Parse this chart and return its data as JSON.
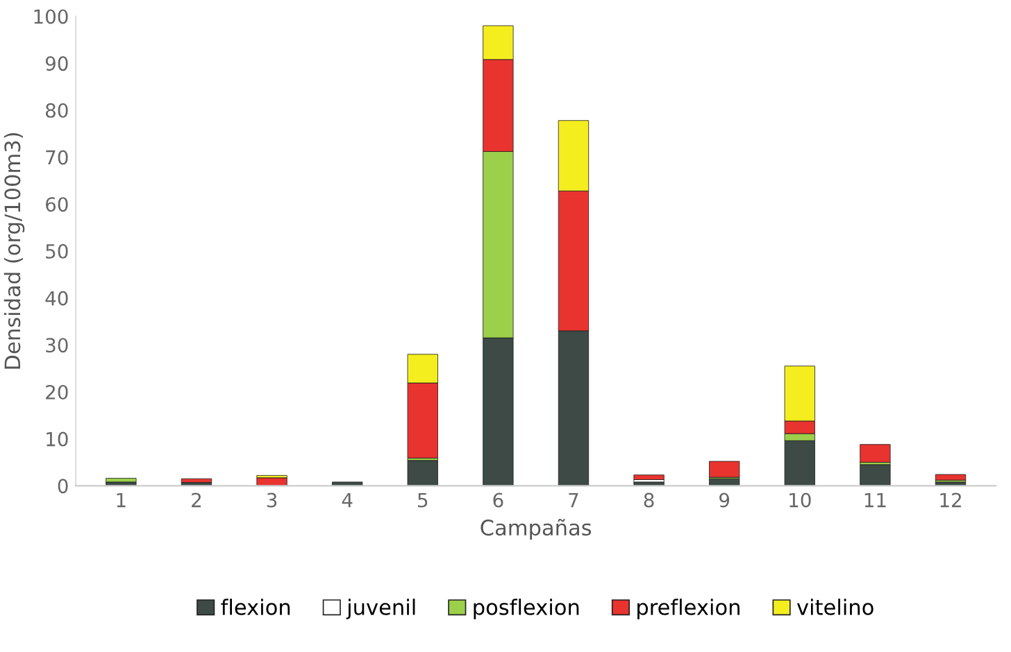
{
  "chart_data": {
    "type": "bar",
    "stacked": true,
    "xlabel": "Campañas",
    "ylabel": "Densidad (org/100m3)",
    "categories": [
      "1",
      "2",
      "3",
      "4",
      "5",
      "6",
      "7",
      "8",
      "9",
      "10",
      "11",
      "12"
    ],
    "series": [
      {
        "name": "flexion",
        "color": "#3d4a45",
        "values": [
          0.8,
          0.7,
          null,
          0.8,
          5.4,
          31.5,
          33,
          0.8,
          1.5,
          9.6,
          4.5,
          0.8
        ]
      },
      {
        "name": "juvenil",
        "color": "#ffffff",
        "values": [
          0,
          0,
          0,
          0,
          0,
          0,
          0,
          0.5,
          0,
          0,
          0,
          0
        ]
      },
      {
        "name": "posflexion",
        "color": "#9ccf4a",
        "values": [
          0.8,
          0,
          0,
          0,
          0.5,
          39.7,
          0,
          0,
          0.3,
          1.5,
          0.5,
          0.4
        ]
      },
      {
        "name": "preflexion",
        "color": "#e8332f",
        "values": [
          0,
          0.8,
          1.7,
          0,
          16,
          19.6,
          29.8,
          1,
          3.4,
          2.7,
          3.8,
          1.2
        ]
      },
      {
        "name": "vitelino",
        "color": "#f5ee1e",
        "values": [
          0,
          0,
          0.5,
          0,
          6.1,
          7.2,
          15,
          0,
          0,
          11.7,
          0,
          0
        ]
      }
    ],
    "ylim": [
      0,
      100
    ],
    "yticks": [
      0,
      10,
      20,
      30,
      40,
      50,
      60,
      70,
      80,
      90,
      100
    ],
    "grid": false,
    "legend": "bottom"
  }
}
